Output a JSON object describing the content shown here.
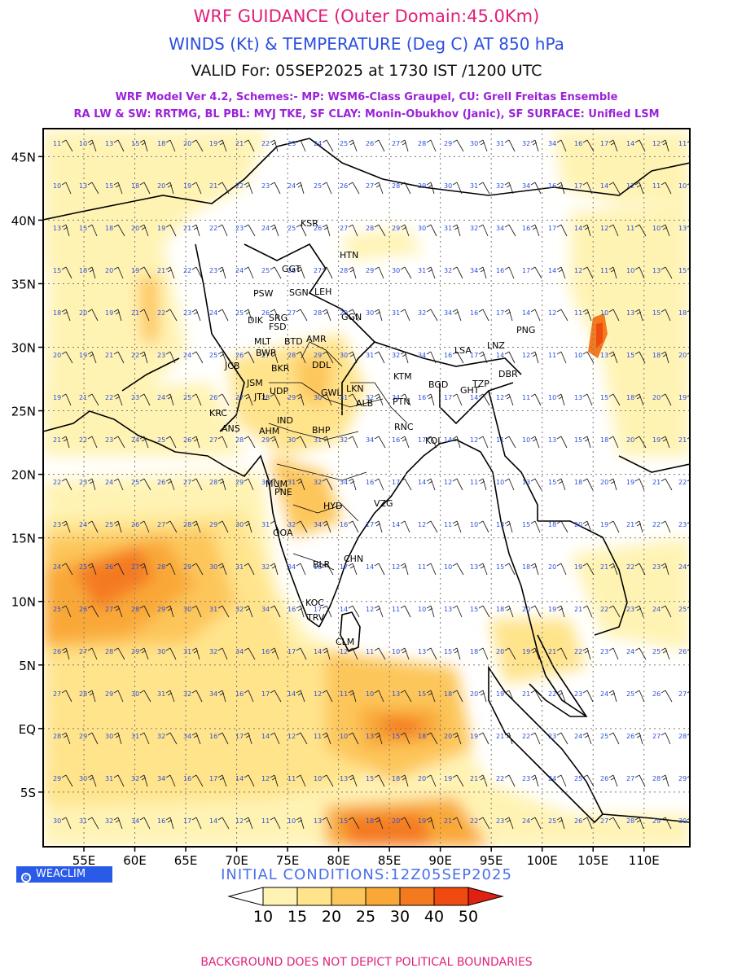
{
  "header": {
    "title": "WRF GUIDANCE (Outer Domain:45.0Km)",
    "subtitle": "WINDS (Kt) & TEMPERATURE (Deg C) AT 850 hPa",
    "valid": "VALID For: 05SEP2025 at 1730 IST /1200 UTC",
    "model_line1": "WRF Model Ver 4.2, Schemes:- MP: WSM6-Class Graupel, CU: Grell Freitas Ensemble",
    "model_line2": "RA LW & SW: RRTMG, BL PBL: MYJ TKE, SF CLAY: Monin-Obukhov (Janic), SF SURFACE: Unified LSM"
  },
  "map": {
    "lat_labels": [
      "45N",
      "40N",
      "35N",
      "30N",
      "25N",
      "20N",
      "15N",
      "10N",
      "5N",
      "EQ",
      "5S"
    ],
    "lon_labels": [
      "55E",
      "60E",
      "65E",
      "70E",
      "75E",
      "80E",
      "85E",
      "90E",
      "95E",
      "100E",
      "105E",
      "110E"
    ],
    "stations": [
      "KSR",
      "HTN",
      "GGT",
      "PSW",
      "SGN",
      "LEH",
      "DIK",
      "SRG",
      "GGN",
      "MLT",
      "FSD",
      "BTD",
      "AMR",
      "BWP",
      "JCB",
      "BKR",
      "JSM",
      "UDP",
      "JTL",
      "KRC",
      "ANS",
      "AHM",
      "IND",
      "DDL",
      "LKN",
      "GWL",
      "BHP",
      "ALB",
      "PTN",
      "RNC",
      "KTM",
      "BGD",
      "GHT",
      "TZP",
      "DBR",
      "LSA",
      "LNZ",
      "PNG",
      "KOL",
      "MUM",
      "PNE",
      "HYD",
      "VZG",
      "GOA",
      "BLR",
      "CHN",
      "KOC",
      "TRV",
      "CLM"
    ],
    "wind_station_values": [
      "11",
      "10",
      "13",
      "15",
      "18",
      "20",
      "19",
      "21",
      "22",
      "23",
      "24",
      "25",
      "26",
      "27",
      "28",
      "29",
      "30",
      "31",
      "32",
      "34",
      "16",
      "17",
      "14",
      "12"
    ]
  },
  "bottom": {
    "logo_text": "WEACLIM",
    "initial_conditions": "INITIAL CONDITIONS:12Z05SEP2025",
    "legend_labels": [
      "10",
      "15",
      "20",
      "25",
      "30",
      "40",
      "50"
    ],
    "footer": "BACKGROUND DOES NOT DEPICT POLITICAL BOUNDARIES"
  },
  "colors": {
    "title": "#e0207a",
    "subtitle": "#2a4fe0",
    "model": "#9b22d8",
    "wind_label": "#2a4fe0",
    "scale": [
      "#ffffff",
      "#fff3b4",
      "#ffe48c",
      "#fdc65a",
      "#f9a838",
      "#f47a20",
      "#ef4a10",
      "#e02010"
    ]
  }
}
